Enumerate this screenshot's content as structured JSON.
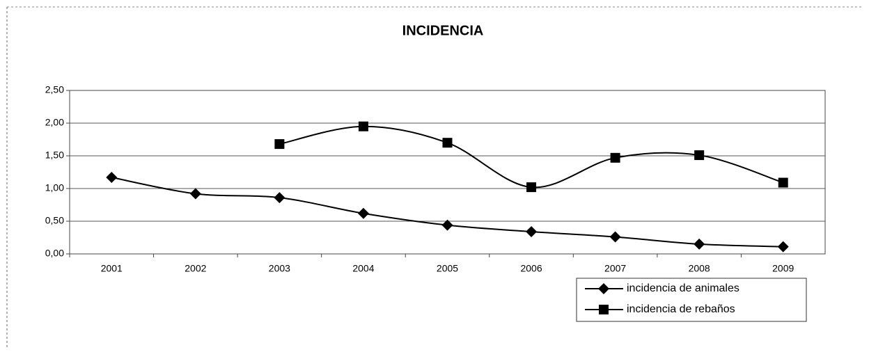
{
  "chart_data": {
    "type": "line",
    "title": "INCIDENCIA",
    "categories": [
      "2001",
      "2002",
      "2003",
      "2004",
      "2005",
      "2006",
      "2007",
      "2008",
      "2009"
    ],
    "series": [
      {
        "name": "incidencia de animales",
        "color": "#000000",
        "marker": "diamond",
        "values": [
          1.17,
          0.92,
          0.86,
          0.62,
          0.44,
          0.34,
          0.26,
          0.15,
          0.11
        ]
      },
      {
        "name": "incidencia de rebaños",
        "color": "#000000",
        "marker": "square",
        "values": [
          null,
          null,
          1.68,
          1.95,
          1.7,
          1.02,
          1.47,
          1.51,
          1.09
        ]
      }
    ],
    "ylim": [
      0,
      2.5
    ],
    "yticks": [
      {
        "value": 0,
        "label": "0,00"
      },
      {
        "value": 0.5,
        "label": "0,50"
      },
      {
        "value": 1,
        "label": "1,00"
      },
      {
        "value": 1.5,
        "label": "1,50"
      },
      {
        "value": 2,
        "label": "2,00"
      },
      {
        "value": 2.5,
        "label": "2,50"
      }
    ],
    "grid": true,
    "legend": "bottom-right"
  }
}
